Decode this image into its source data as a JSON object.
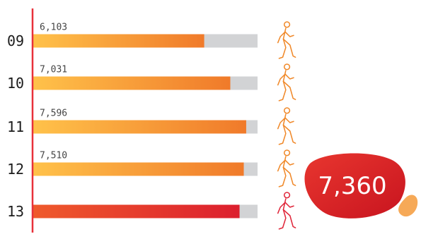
{
  "chart_data": {
    "type": "bar",
    "orientation": "horizontal",
    "categories": [
      "09",
      "10",
      "11",
      "12",
      "13"
    ],
    "values": [
      6103,
      7031,
      7596,
      7510,
      7360
    ],
    "value_labels": [
      "6,103",
      "7,031",
      "7,596",
      "7,510",
      ""
    ],
    "xlim": [
      0,
      8000
    ],
    "highlight": {
      "category": "13",
      "label": "7,360"
    },
    "colors": {
      "bar_start": "#ffc24a",
      "bar_end": "#f07a2a",
      "bar_track": "#d2d3d5",
      "highlight_start": "#ef5a2c",
      "highlight_end": "#dc1f2e",
      "axis": "#e8313a",
      "runner": "#f0892a",
      "runner_highlight": "#e0263a",
      "badge": "#d61f2c",
      "badge_blob": "#f59a3a"
    },
    "icons": [
      "runner-icon",
      "runner-icon",
      "runner-icon",
      "runner-icon",
      "runner-icon"
    ]
  }
}
